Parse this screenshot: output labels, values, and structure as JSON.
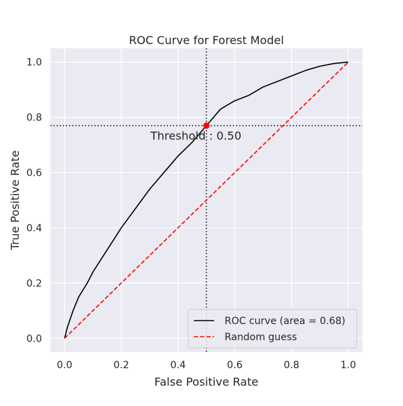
{
  "chart_data": {
    "type": "line",
    "title": "ROC Curve for Forest Model",
    "xlabel": "False Positive Rate",
    "ylabel": "True Positive Rate",
    "xlim": [
      -0.05,
      1.05
    ],
    "ylim": [
      -0.05,
      1.05
    ],
    "xticks": [
      0.0,
      0.2,
      0.4,
      0.6,
      0.8,
      1.0
    ],
    "yticks": [
      0.0,
      0.2,
      0.4,
      0.6,
      0.8,
      1.0
    ],
    "xtick_labels": [
      "0.0",
      "0.2",
      "0.4",
      "0.6",
      "0.8",
      "1.0"
    ],
    "ytick_labels": [
      "0.0",
      "0.2",
      "0.4",
      "0.6",
      "0.8",
      "1.0"
    ],
    "grid": true,
    "legend_position": "lower-right",
    "series": [
      {
        "name": "ROC curve (area = 0.68)",
        "color": "#000000",
        "style": "solid",
        "x": [
          0.0,
          0.01,
          0.02,
          0.03,
          0.05,
          0.08,
          0.1,
          0.15,
          0.2,
          0.25,
          0.3,
          0.35,
          0.4,
          0.45,
          0.5,
          0.55,
          0.6,
          0.65,
          0.7,
          0.75,
          0.8,
          0.85,
          0.9,
          0.95,
          1.0
        ],
        "y": [
          0.0,
          0.04,
          0.07,
          0.1,
          0.15,
          0.2,
          0.24,
          0.32,
          0.4,
          0.47,
          0.54,
          0.6,
          0.66,
          0.71,
          0.77,
          0.83,
          0.86,
          0.88,
          0.91,
          0.93,
          0.95,
          0.97,
          0.985,
          0.995,
          1.0
        ]
      },
      {
        "name": "Random guess",
        "color": "#ff0000",
        "style": "dashed",
        "x": [
          0.0,
          1.0
        ],
        "y": [
          0.0,
          1.0
        ]
      }
    ],
    "threshold_point": {
      "x": 0.5,
      "y": 0.77,
      "color": "#ff0000",
      "label": "Threshold : 0.50"
    },
    "reference_lines": {
      "vertical_x": 0.5,
      "horizontal_y": 0.77,
      "color": "#000000",
      "style": "dotted"
    },
    "colors": {
      "background": "#eaeaf2",
      "grid": "#ffffff",
      "text": "#262626"
    }
  }
}
